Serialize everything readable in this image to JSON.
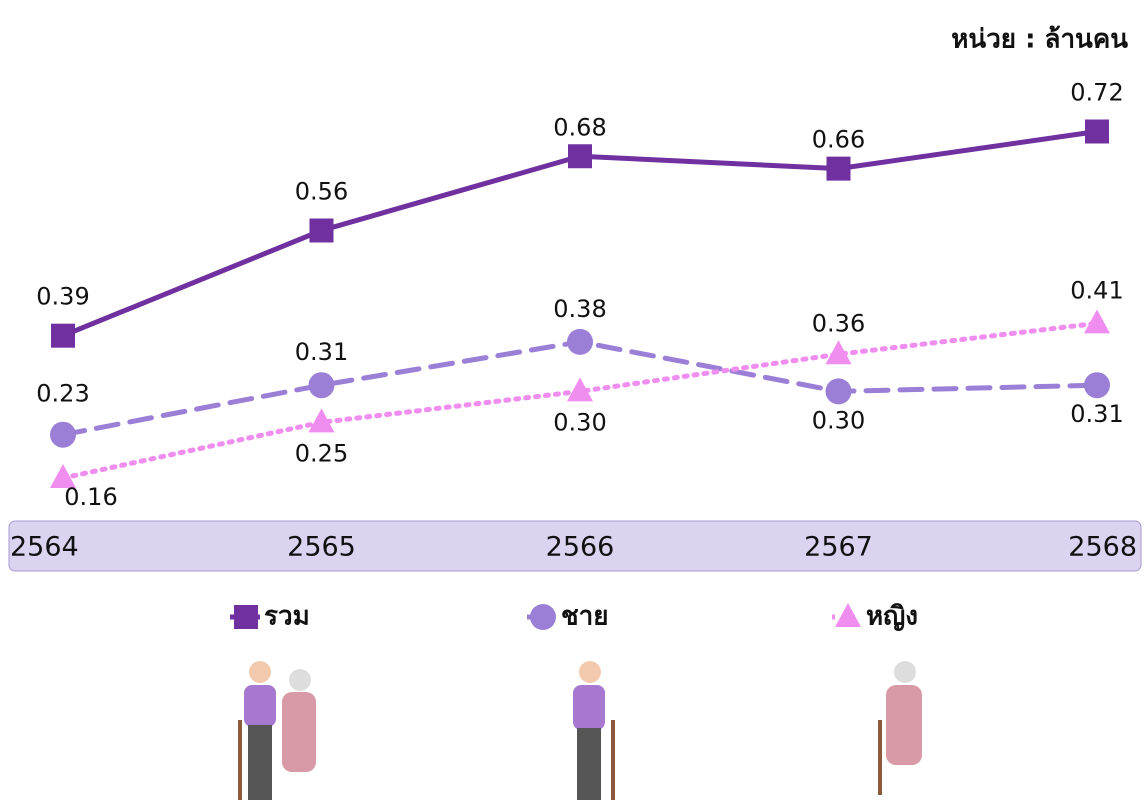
{
  "chart_data": {
    "type": "line",
    "unit_label": "หน่วย : ล้านคน",
    "categories": [
      "2564",
      "2565",
      "2566",
      "2567",
      "2568"
    ],
    "ylim": [
      0,
      0.8
    ],
    "series": [
      {
        "name": "รวม",
        "color": "#7030a0",
        "dash": "solid",
        "marker": "square",
        "values": [
          0.39,
          0.56,
          0.68,
          0.66,
          0.72
        ],
        "value_labels": [
          "0.39",
          "0.56",
          "0.68",
          "0.66",
          "0.72"
        ]
      },
      {
        "name": "ชาย",
        "color": "#9b7fd6",
        "dash": "dashed",
        "marker": "circle",
        "values": [
          0.23,
          0.31,
          0.38,
          0.3,
          0.31
        ],
        "value_labels": [
          "0.23",
          "0.31",
          "0.38",
          "0.30",
          "0.31"
        ]
      },
      {
        "name": "หญิง",
        "color": "#f08ef0",
        "dash": "dotted",
        "marker": "triangle",
        "values": [
          0.16,
          0.25,
          0.3,
          0.36,
          0.41
        ],
        "value_labels": [
          "0.16",
          "0.25",
          "0.30",
          "0.36",
          "0.41"
        ]
      }
    ]
  }
}
